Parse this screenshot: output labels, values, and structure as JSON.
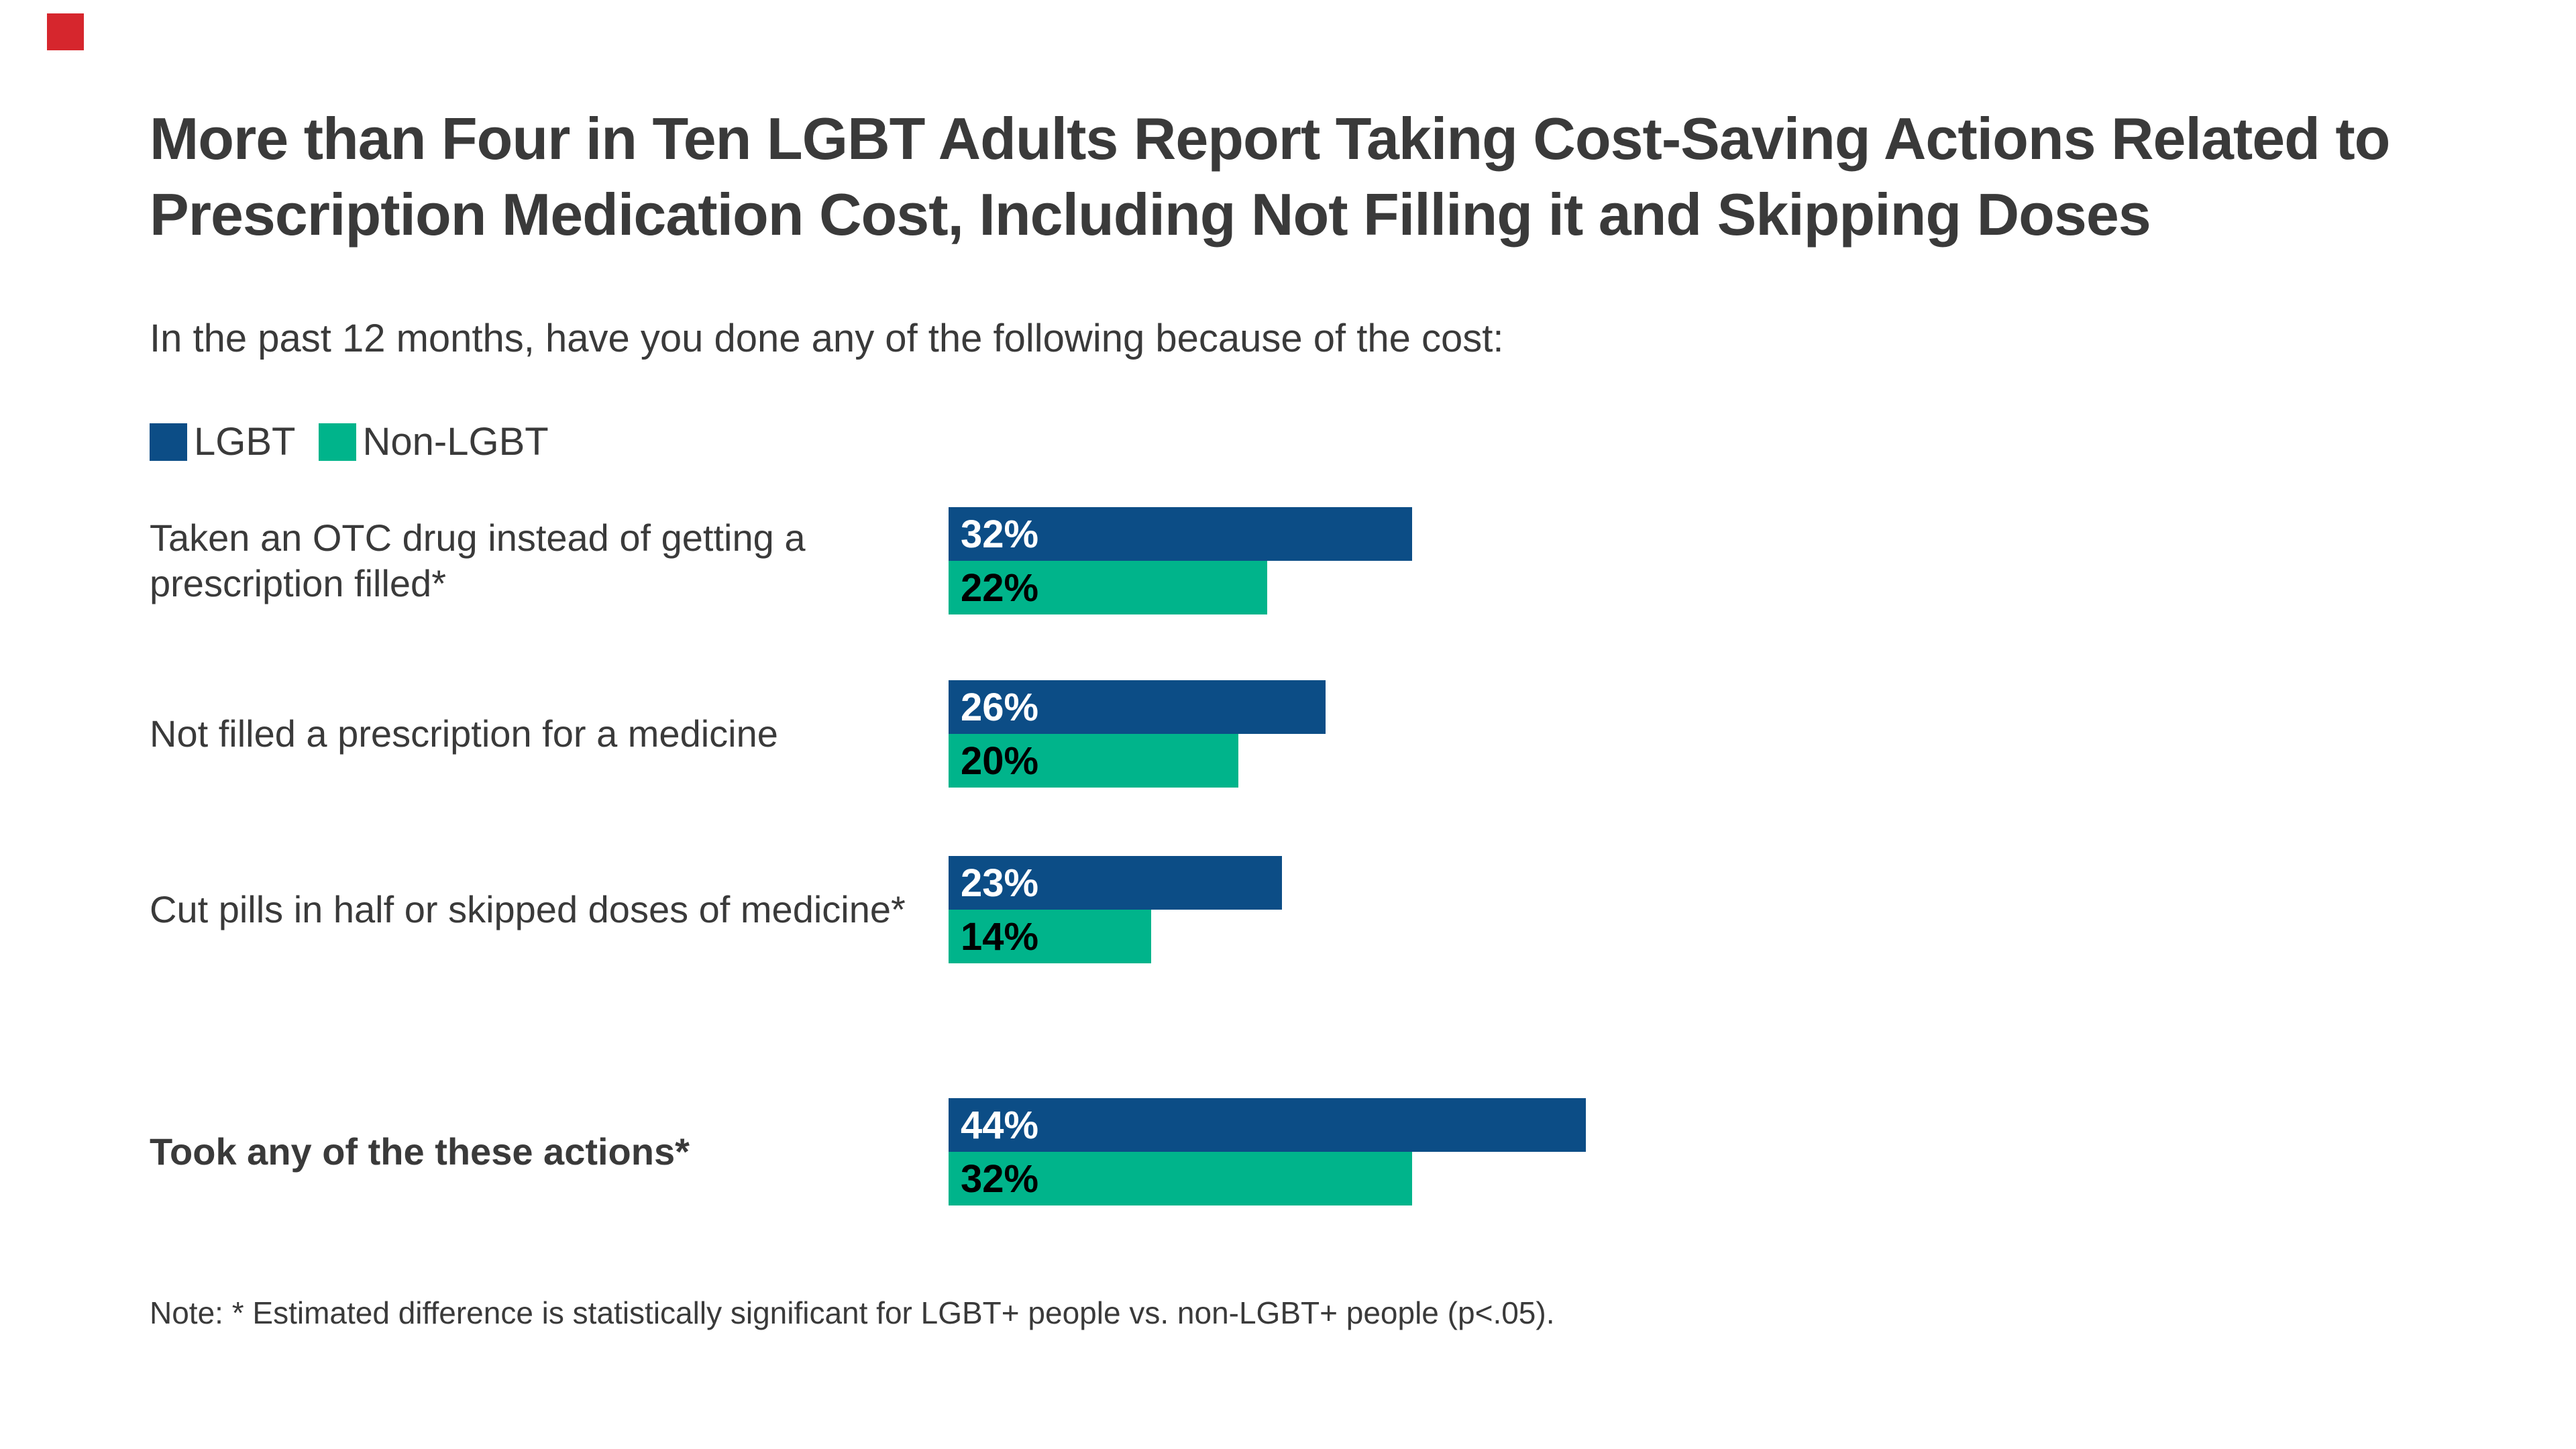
{
  "marker": {
    "color": "#d6262d"
  },
  "title": {
    "line1": "More than Four in Ten LGBT Adults Report Taking Cost-Saving Actions Related to",
    "line2": "Prescription Medication Cost, Including Not Filling it and Skipping Doses"
  },
  "subtitle": "In the past 12 months, have you done any of the following because of the cost:",
  "legend": [
    {
      "label": "LGBT",
      "color": "#0c4d86"
    },
    {
      "label": "Non-LGBT",
      "color": "#00b48b"
    }
  ],
  "chart_data": {
    "type": "bar",
    "orientation": "horizontal",
    "title": "More than Four in Ten LGBT Adults Report Taking Cost-Saving Actions Related to Prescription Medication Cost, Including Not Filling it and Skipping Doses",
    "subtitle": "In the past 12 months, have you done any of the following because of the cost:",
    "categories": [
      "Taken an OTC drug instead of getting a prescription filled*",
      "Not filled a prescription for a medicine",
      "Cut pills in half or skipped doses of medicine*",
      "Took any of the these actions*"
    ],
    "series": [
      {
        "name": "LGBT",
        "color": "#0c4d86",
        "text_color": "#ffffff",
        "values": [
          32,
          26,
          23,
          44
        ]
      },
      {
        "name": "Non-LGBT",
        "color": "#00b48b",
        "text_color": "#000000",
        "values": [
          22,
          20,
          14,
          32
        ]
      }
    ],
    "value_suffix": "%",
    "xlim": [
      0,
      46
    ],
    "grid": false,
    "legend_position": "top-left",
    "emphasized_category_index": 3
  },
  "note": "Note: * Estimated difference is statistically significant for LGBT+ people vs. non-LGBT+ people (p<.05)."
}
